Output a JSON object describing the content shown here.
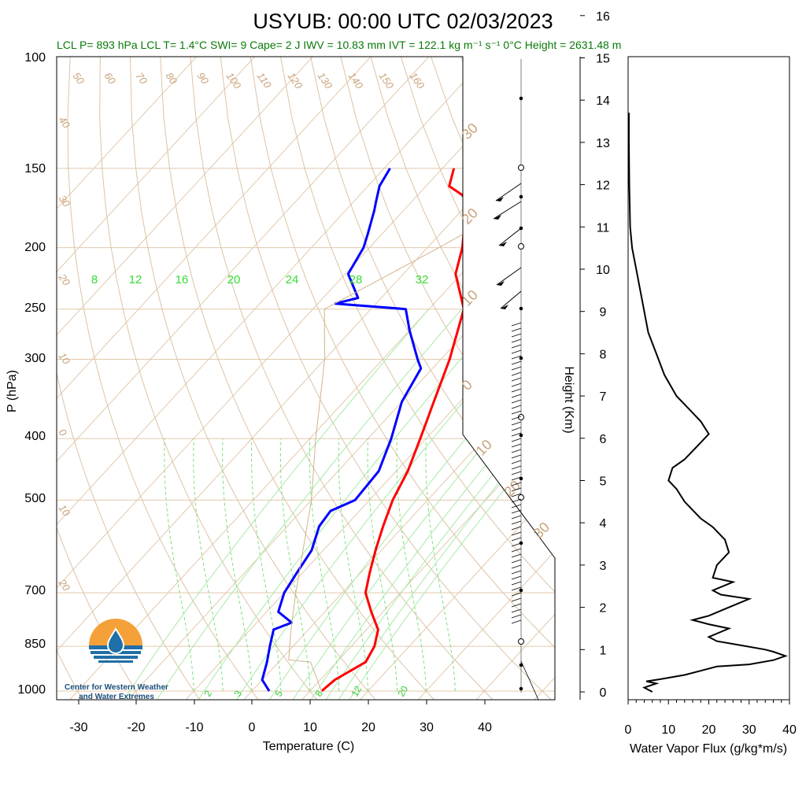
{
  "title": "USYUB: 00:00 UTC 02/03/2023",
  "subtitle": "LCL P= 893 hPa  LCL T= 1.4°C  SWI= 9  Cape= 2 J  IWV = 10.83 mm  IVT = 122.1 kg m⁻¹ s⁻¹  0°C Height = 2631.48 m",
  "skewt": {
    "ylabel": "P (hPa)",
    "xlabel": "Temperature (C)",
    "pressure_ticks": [
      "100",
      "150",
      "200",
      "250",
      "300",
      "400",
      "500",
      "700",
      "850",
      "1000"
    ],
    "temp_ticks": [
      "-30",
      "-20",
      "-10",
      "0",
      "10",
      "20",
      "30",
      "40"
    ],
    "mixing_ratio_labels_top": [
      "8",
      "12",
      "16",
      "20",
      "24",
      "28",
      "32"
    ],
    "mixing_ratio_labels_bottom": [
      "2",
      "3",
      "5",
      "8",
      "12",
      "20"
    ],
    "theta_labels": [
      "50",
      "60",
      "70",
      "80",
      "90",
      "100",
      "110",
      "120",
      "130",
      "140",
      "150",
      "160"
    ],
    "isotherm_labels": [
      "40",
      "30",
      "20",
      "10",
      "0",
      "10",
      "20"
    ],
    "big_labels": [
      "30",
      "20",
      "10",
      "0",
      "10",
      "20",
      "30"
    ]
  },
  "logo": {
    "line1": "Center for Western Weather",
    "line2": "and Water Extremes"
  },
  "flux_panel": {
    "ylabel": "Height (Km)",
    "xlabel": "Water Vapor Flux (g/kg*m/s)",
    "height_ticks": [
      "0",
      "1",
      "2",
      "3",
      "4",
      "5",
      "6",
      "7",
      "8",
      "9",
      "10",
      "11",
      "12",
      "13",
      "14",
      "15",
      "16"
    ],
    "flux_ticks": [
      "0",
      "10",
      "20",
      "30",
      "40"
    ]
  },
  "chart_data": [
    {
      "type": "line",
      "title": "USYUB: 00:00 UTC 02/03/2023",
      "xlabel": "Temperature (C)",
      "ylabel": "P (hPa)",
      "xlim": [
        -34,
        46
      ],
      "ylim": [
        1050,
        100
      ],
      "series": [
        {
          "color": "#ff0000",
          "points": [
            [
              12.0,
              1000
            ],
            [
              12.5,
              960
            ],
            [
              15.0,
              900
            ],
            [
              14.0,
              850
            ],
            [
              12.0,
              800
            ],
            [
              8.0,
              750
            ],
            [
              4.0,
              700
            ],
            [
              1.5,
              650
            ],
            [
              -1.0,
              600
            ],
            [
              -3.5,
              550
            ],
            [
              -6.0,
              500
            ],
            [
              -8.0,
              450
            ],
            [
              -11.0,
              400
            ],
            [
              -14.5,
              350
            ],
            [
              -18.5,
              300
            ],
            [
              -24.0,
              250
            ],
            [
              -31.0,
              220
            ],
            [
              -34.0,
              200
            ],
            [
              -36.0,
              190
            ],
            [
              -40.0,
              170
            ],
            [
              -42.5,
              165
            ],
            [
              -46.0,
              160
            ],
            [
              -48.0,
              150
            ]
          ]
        },
        {
          "color": "#0000ff",
          "points": [
            [
              3.0,
              1000
            ],
            [
              0.0,
              960
            ],
            [
              -2.0,
              900
            ],
            [
              -4.0,
              850
            ],
            [
              -6.0,
              800
            ],
            [
              -4.0,
              780
            ],
            [
              -8.0,
              750
            ],
            [
              -10.0,
              700
            ],
            [
              -11.0,
              650
            ],
            [
              -12.0,
              600
            ],
            [
              -14.5,
              550
            ],
            [
              -15.0,
              520
            ],
            [
              -12.5,
              500
            ],
            [
              -13.0,
              450
            ],
            [
              -16.0,
              400
            ],
            [
              -20.0,
              350
            ],
            [
              -22.0,
              310
            ],
            [
              -24.0,
              300
            ],
            [
              -30.0,
              270
            ],
            [
              -34.0,
              250
            ],
            [
              -47.0,
              245
            ],
            [
              -44.0,
              240
            ],
            [
              -49.5,
              220
            ],
            [
              -51.0,
              200
            ],
            [
              -52.5,
              190
            ],
            [
              -55.0,
              175
            ],
            [
              -56.0,
              170
            ],
            [
              -58.0,
              160
            ],
            [
              -59.0,
              150
            ]
          ]
        },
        {
          "color": "#d2b48c",
          "points": [
            [
              12.0,
              1000
            ],
            [
              5.5,
              900
            ],
            [
              1.4,
              893
            ],
            [
              -3.0,
              800
            ],
            [
              -8.0,
              700
            ],
            [
              -13.5,
              600
            ],
            [
              -20.0,
              500
            ],
            [
              -29.0,
              400
            ],
            [
              -40.0,
              300
            ],
            [
              -48.0,
              250
            ],
            [
              -38.0,
              200
            ],
            [
              -10.0,
              100
            ]
          ]
        }
      ],
      "wind_barbs": "plotted at right edge of sounding panel"
    },
    {
      "type": "line",
      "xlabel": "Water Vapor Flux (g/kg*m/s)",
      "ylabel": "Height (Km)",
      "xlim": [
        0,
        40
      ],
      "ylim": [
        0,
        16
      ],
      "series": [
        {
          "color": "#000000",
          "points": [
            [
              6,
              0.0
            ],
            [
              4,
              0.1
            ],
            [
              7,
              0.2
            ],
            [
              4.5,
              0.25
            ],
            [
              8,
              0.3
            ],
            [
              14,
              0.4
            ],
            [
              22,
              0.6
            ],
            [
              30,
              0.65
            ],
            [
              36,
              0.75
            ],
            [
              39,
              0.85
            ],
            [
              36,
              0.95
            ],
            [
              34,
              1.0
            ],
            [
              28,
              1.1
            ],
            [
              22,
              1.2
            ],
            [
              20,
              1.3
            ],
            [
              25,
              1.5
            ],
            [
              20,
              1.6
            ],
            [
              16,
              1.7
            ],
            [
              20,
              1.8
            ],
            [
              25,
              2.0
            ],
            [
              30,
              2.2
            ],
            [
              23,
              2.3
            ],
            [
              21,
              2.4
            ],
            [
              26,
              2.6
            ],
            [
              21,
              2.7
            ],
            [
              22,
              3.0
            ],
            [
              25,
              3.3
            ],
            [
              24,
              3.6
            ],
            [
              21,
              3.9
            ],
            [
              18,
              4.1
            ],
            [
              14,
              4.5
            ],
            [
              12,
              4.8
            ],
            [
              10,
              5.0
            ],
            [
              11,
              5.3
            ],
            [
              14,
              5.5
            ],
            [
              16,
              5.7
            ],
            [
              18,
              5.9
            ],
            [
              20,
              6.1
            ],
            [
              18,
              6.4
            ],
            [
              15,
              6.7
            ],
            [
              12,
              7.0
            ],
            [
              9,
              7.5
            ],
            [
              7,
              8.0
            ],
            [
              5,
              8.5
            ],
            [
              4,
              9.0
            ],
            [
              3,
              9.5
            ],
            [
              2,
              10.0
            ],
            [
              1,
              10.5
            ],
            [
              0.5,
              11
            ],
            [
              0.3,
              12
            ],
            [
              0.2,
              13
            ],
            [
              0.2,
              13.7
            ]
          ]
        }
      ]
    }
  ]
}
